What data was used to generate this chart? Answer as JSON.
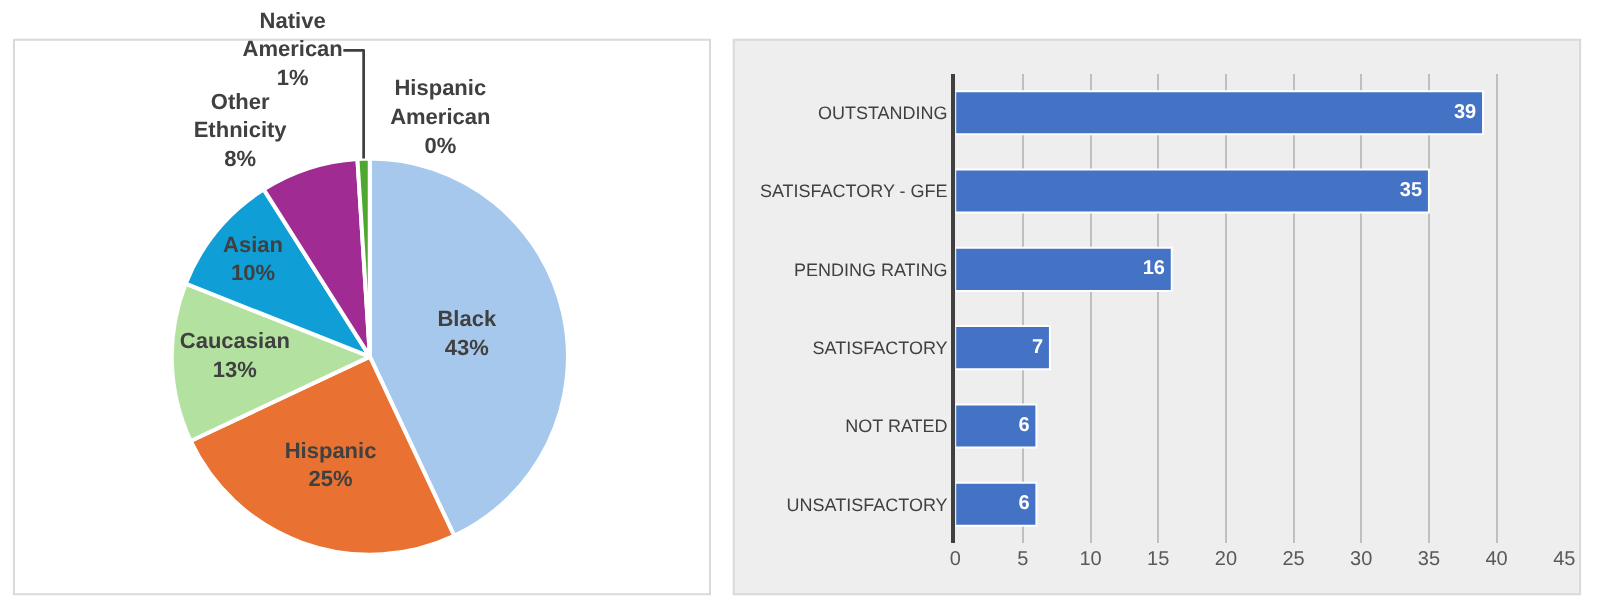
{
  "chart_data": [
    {
      "type": "pie",
      "categories": [
        "Black",
        "Hispanic",
        "Caucasian",
        "Asian",
        "Other Ethnicity",
        "Native American",
        "Hispanic American"
      ],
      "values": [
        43,
        25,
        13,
        10,
        8,
        1,
        0
      ],
      "colors": [
        "#a6c8ec",
        "#e97132",
        "#b3e2a0",
        "#0f9ed5",
        "#a02b93",
        "#4ea72e",
        "#d9d9d9"
      ],
      "value_labels": [
        "43%",
        "25%",
        "13%",
        "10%",
        "8%",
        "1%",
        "0%"
      ]
    },
    {
      "type": "bar",
      "orientation": "horizontal",
      "categories": [
        "OUTSTANDING",
        "SATISFACTORY - GFE",
        "PENDING RATING",
        "SATISFACTORY",
        "NOT RATED",
        "UNSATISFACTORY"
      ],
      "values": [
        39,
        35,
        16,
        7,
        6,
        6
      ],
      "color": "#4472c4",
      "xlim": [
        0,
        45
      ],
      "xticks": [
        0,
        5,
        10,
        15,
        20,
        25,
        30,
        35,
        40,
        45
      ],
      "grid": "x",
      "data_labels": true
    }
  ]
}
